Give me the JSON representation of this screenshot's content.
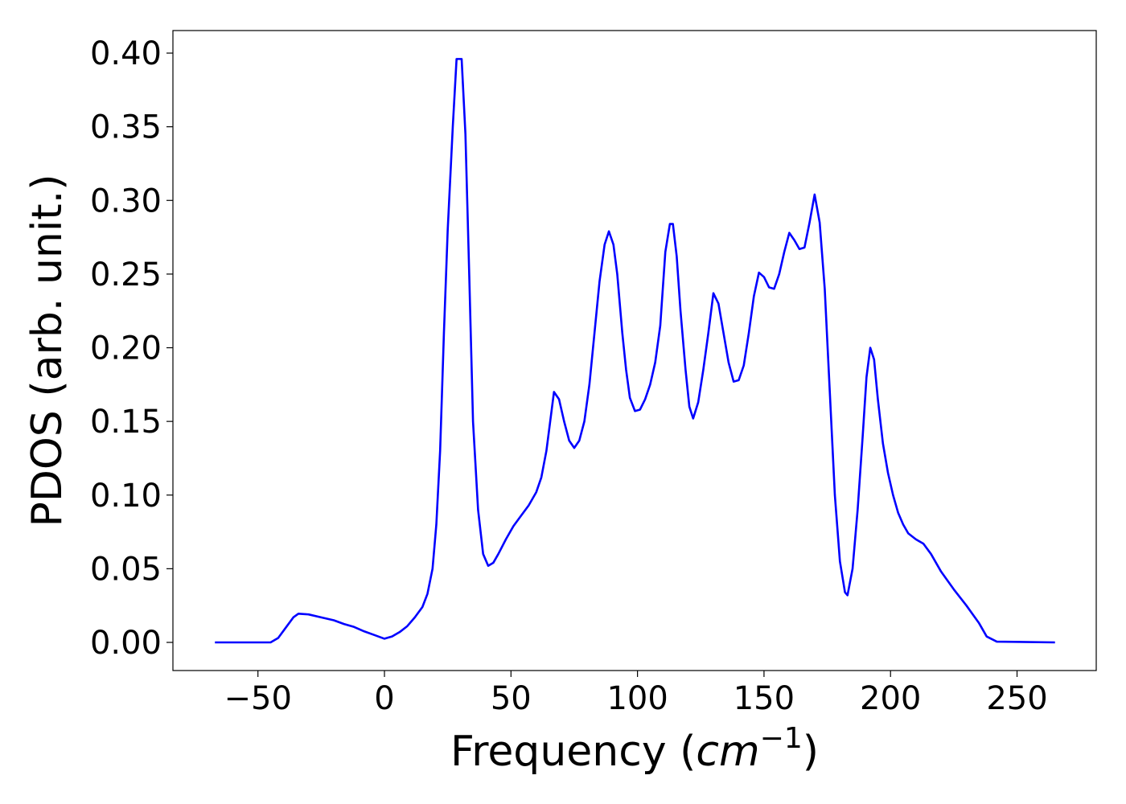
{
  "chart_data": {
    "type": "line",
    "xlabel": {
      "text": "Frequency (",
      "unit": "cm",
      "exponent": "−1",
      "close": ")"
    },
    "ylabel": "PDOS (arb. unit.)",
    "color": "#0000ff",
    "x": [
      -67,
      -45,
      -42,
      -39,
      -36,
      -34,
      -30,
      -25,
      -20,
      -16,
      -12,
      -8,
      -4,
      0,
      3,
      6,
      9,
      12,
      15,
      17,
      19,
      20.5,
      22,
      23.5,
      25,
      27,
      28.5,
      30.5,
      32,
      33.5,
      35,
      37,
      39,
      41,
      43,
      45,
      48,
      51,
      54,
      57,
      60,
      62,
      64,
      65.5,
      67,
      69,
      71,
      73,
      75,
      77,
      79,
      81,
      83,
      85,
      87,
      88.7,
      90.5,
      92,
      94,
      95.5,
      97,
      99,
      101,
      103,
      105,
      107,
      109,
      111,
      112.8,
      114,
      115.5,
      117,
      119,
      120.5,
      122,
      124,
      126,
      128,
      130,
      132,
      134,
      136,
      138,
      140,
      142,
      144,
      146,
      148,
      150,
      152,
      154,
      156,
      158,
      160,
      162,
      164,
      166,
      168,
      170,
      172,
      174,
      176,
      178,
      180,
      182,
      183,
      185,
      187,
      189,
      190.5,
      192,
      193.5,
      195,
      197,
      199,
      201,
      203,
      205,
      207,
      210,
      213,
      216,
      220,
      225,
      230,
      235,
      238,
      242,
      265
    ],
    "values": [
      0,
      0,
      0.003,
      0.01,
      0.017,
      0.0195,
      0.019,
      0.017,
      0.015,
      0.0125,
      0.0105,
      0.0075,
      0.005,
      0.0025,
      0.004,
      0.007,
      0.011,
      0.017,
      0.024,
      0.033,
      0.05,
      0.08,
      0.13,
      0.21,
      0.28,
      0.35,
      0.396,
      0.396,
      0.345,
      0.25,
      0.15,
      0.09,
      0.06,
      0.052,
      0.054,
      0.06,
      0.07,
      0.079,
      0.086,
      0.093,
      0.102,
      0.112,
      0.13,
      0.15,
      0.17,
      0.165,
      0.15,
      0.137,
      0.132,
      0.137,
      0.15,
      0.175,
      0.21,
      0.245,
      0.27,
      0.279,
      0.27,
      0.25,
      0.21,
      0.185,
      0.166,
      0.157,
      0.158,
      0.165,
      0.175,
      0.19,
      0.215,
      0.265,
      0.284,
      0.284,
      0.262,
      0.225,
      0.185,
      0.16,
      0.152,
      0.163,
      0.185,
      0.21,
      0.237,
      0.23,
      0.21,
      0.19,
      0.177,
      0.178,
      0.188,
      0.21,
      0.235,
      0.251,
      0.248,
      0.241,
      0.24,
      0.25,
      0.265,
      0.278,
      0.273,
      0.267,
      0.268,
      0.285,
      0.304,
      0.285,
      0.24,
      0.17,
      0.1,
      0.055,
      0.034,
      0.032,
      0.05,
      0.09,
      0.14,
      0.18,
      0.2,
      0.192,
      0.165,
      0.135,
      0.115,
      0.1,
      0.088,
      0.08,
      0.074,
      0.07,
      0.067,
      0.06,
      0.048,
      0.036,
      0.025,
      0.013,
      0.004,
      0.0005,
      0
    ],
    "xlim": [
      -83.6,
      281.3
    ],
    "ylim": [
      -0.0191,
      0.4153
    ],
    "xticks": [
      {
        "value": -50,
        "label": "−50"
      },
      0,
      50,
      100,
      150,
      200,
      250
    ],
    "yticks": [
      {
        "value": 0,
        "label": "0.00"
      },
      {
        "value": 0.05,
        "label": "0.05"
      },
      {
        "value": 0.1,
        "label": "0.10"
      },
      {
        "value": 0.15,
        "label": "0.15"
      },
      {
        "value": 0.2,
        "label": "0.20"
      },
      {
        "value": 0.25,
        "label": "0.25"
      },
      {
        "value": 0.3,
        "label": "0.30"
      },
      {
        "value": 0.35,
        "label": "0.35"
      },
      {
        "value": 0.4,
        "label": "0.40"
      }
    ]
  }
}
